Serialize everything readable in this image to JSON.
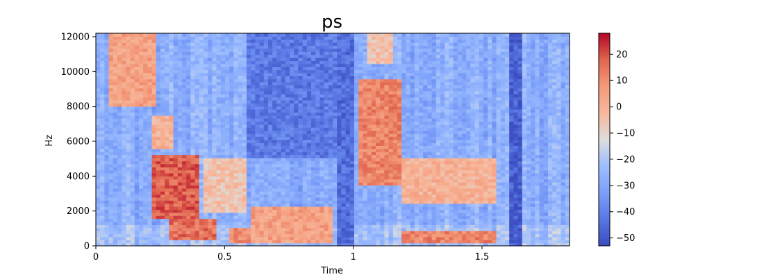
{
  "chart_data": {
    "type": "heatmap",
    "title": "ps",
    "xlabel": "Time",
    "ylabel": "Hz",
    "xlim": [
      0,
      1.84
    ],
    "ylim": [
      0,
      12200
    ],
    "x_ticks": [
      "0",
      "0.5",
      "1",
      "1.5"
    ],
    "x_tick_values": [
      0,
      0.5,
      1,
      1.5
    ],
    "y_ticks": [
      "0",
      "2000",
      "4000",
      "6000",
      "8000",
      "10000",
      "12000"
    ],
    "y_tick_values": [
      0,
      2000,
      4000,
      6000,
      8000,
      10000,
      12000
    ],
    "colorbar": {
      "colormap": "coolwarm",
      "range": [
        -53,
        28
      ],
      "ticks": [
        "20",
        "10",
        "0",
        "−10",
        "−20",
        "−30",
        "−40",
        "−50"
      ],
      "tick_values": [
        20,
        10,
        0,
        -10,
        -20,
        -30,
        -40,
        -50
      ]
    },
    "grid": false,
    "energy_regions": [
      {
        "t": [
          0.05,
          0.24
        ],
        "f": [
          8000,
          12200
        ],
        "level": 5
      },
      {
        "t": [
          0.22,
          0.3
        ],
        "f": [
          5500,
          7500
        ],
        "level": 0
      },
      {
        "t": [
          0.22,
          0.4
        ],
        "f": [
          1500,
          5200
        ],
        "level": 18
      },
      {
        "t": [
          0.28,
          0.46
        ],
        "f": [
          300,
          1500
        ],
        "level": 15
      },
      {
        "t": [
          0.42,
          0.58
        ],
        "f": [
          2000,
          5000
        ],
        "level": -5
      },
      {
        "t": [
          0.52,
          0.6
        ],
        "f": [
          100,
          1000
        ],
        "level": 10
      },
      {
        "t": [
          0.6,
          0.92
        ],
        "f": [
          100,
          2200
        ],
        "level": 5
      },
      {
        "t": [
          0.58,
          0.95
        ],
        "f": [
          5000,
          12200
        ],
        "level": -42
      },
      {
        "t": [
          0.94,
          1.0
        ],
        "f": [
          0,
          12200
        ],
        "level": -45
      },
      {
        "t": [
          1.02,
          1.18
        ],
        "f": [
          3500,
          9500
        ],
        "level": 12
      },
      {
        "t": [
          1.05,
          1.15
        ],
        "f": [
          10500,
          12200
        ],
        "level": -5
      },
      {
        "t": [
          1.18,
          1.55
        ],
        "f": [
          2500,
          5000
        ],
        "level": 0
      },
      {
        "t": [
          1.18,
          1.55
        ],
        "f": [
          100,
          800
        ],
        "level": 12
      },
      {
        "t": [
          1.6,
          1.65
        ],
        "f": [
          0,
          12200
        ],
        "level": -48
      }
    ]
  }
}
